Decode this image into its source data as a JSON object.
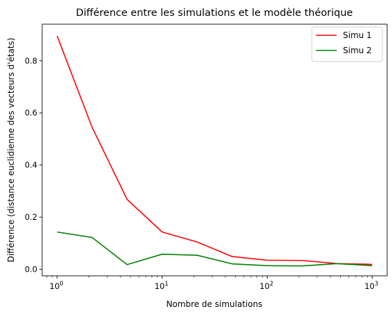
{
  "chart_data": {
    "type": "line",
    "title": "Différence entre les simulations et le modèle théorique",
    "xlabel": "Nombre de simulations",
    "ylabel": "Différence (distance euclidienne des vecteurs d'états)",
    "xscale": "log",
    "xlim": [
      0.72,
      1390
    ],
    "ylim": [
      -0.025,
      0.94
    ],
    "x_ticks": [
      {
        "value": 1,
        "base": "10",
        "exp": "0"
      },
      {
        "value": 10,
        "base": "10",
        "exp": "1"
      },
      {
        "value": 100,
        "base": "10",
        "exp": "2"
      },
      {
        "value": 1000,
        "base": "10",
        "exp": "3"
      }
    ],
    "y_ticks": [
      {
        "value": 0.0,
        "label": "0.0"
      },
      {
        "value": 0.2,
        "label": "0.2"
      },
      {
        "value": 0.4,
        "label": "0.4"
      },
      {
        "value": 0.6,
        "label": "0.6"
      },
      {
        "value": 0.8,
        "label": "0.8"
      }
    ],
    "x": [
      1,
      2.15,
      4.64,
      10,
      21.5,
      46.4,
      100,
      215,
      464,
      1000
    ],
    "series": [
      {
        "name": "Simu 1",
        "color": "#ff0000",
        "values": [
          0.895,
          0.545,
          0.268,
          0.143,
          0.105,
          0.049,
          0.035,
          0.034,
          0.022,
          0.019
        ]
      },
      {
        "name": "Simu 2",
        "color": "#008000",
        "values": [
          0.143,
          0.122,
          0.018,
          0.058,
          0.054,
          0.021,
          0.014,
          0.013,
          0.022,
          0.014
        ]
      }
    ],
    "legend_position": "top-right",
    "grid": false
  }
}
